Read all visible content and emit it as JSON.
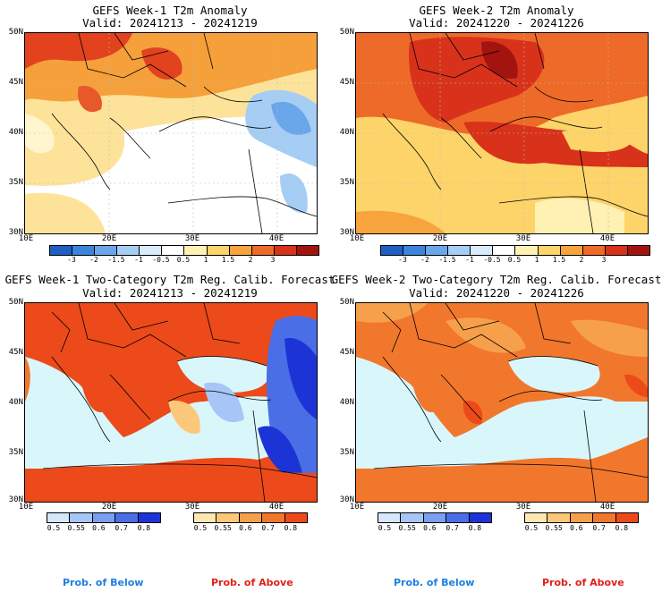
{
  "panels": [
    {
      "title": "GEFS Week-1 T2m Anomaly",
      "valid": "Valid: 20241213 - 20241219"
    },
    {
      "title": "GEFS Week-2 T2m Anomaly",
      "valid": "Valid: 20241220 - 20241226"
    },
    {
      "title": "GEFS Week-1 Two-Category T2m Reg. Calib. Forecast",
      "valid": "Valid: 20241213 - 20241219"
    },
    {
      "title": "GEFS Week-2 Two-Category T2m Reg. Calib. Forecast",
      "valid": "Valid: 20241220 - 20241226"
    }
  ],
  "lat_labels": [
    "50N",
    "45N",
    "40N",
    "35N",
    "30N"
  ],
  "lon_labels": [
    "10E",
    "20E",
    "30E",
    "40E"
  ],
  "anomaly_colorbar": {
    "labels": [
      "-3",
      "-2",
      "-1.5",
      "-1",
      "-0.5",
      "0.5",
      "1",
      "1.5",
      "2",
      "3"
    ],
    "colors": [
      "#1f5fc4",
      "#3a84dc",
      "#6aa6ea",
      "#a6cdf4",
      "#d8ebfb",
      "#ffffff",
      "#fff1b3",
      "#fcd46a",
      "#f6a43b",
      "#ee6a28",
      "#d8321b",
      "#a3130f"
    ]
  },
  "prob_below_colorbar": {
    "labels": [
      "0.5",
      "0.55",
      "0.6",
      "0.7",
      "0.8"
    ],
    "colors": [
      "#d6e6fb",
      "#a7c5f6",
      "#7a9ef0",
      "#4a6ee6",
      "#1c34d6"
    ]
  },
  "prob_above_colorbar": {
    "labels": [
      "0.5",
      "0.55",
      "0.6",
      "0.7",
      "0.8"
    ],
    "colors": [
      "#fde7b3",
      "#fbc879",
      "#f6a04b",
      "#f1772d",
      "#ec4a1a"
    ]
  },
  "legend": {
    "below": "Prob. of Below",
    "above": "Prob. of Above"
  },
  "colors": {
    "below_text": "#1e7fe0",
    "above_text": "#e0201a",
    "sea_prob": "#d9f6fb"
  }
}
